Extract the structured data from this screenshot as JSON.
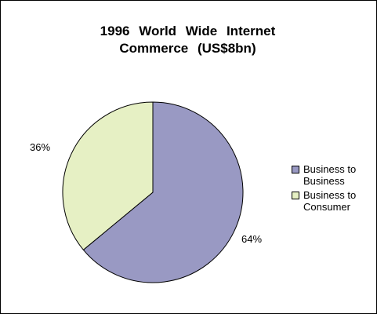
{
  "chart_data": {
    "type": "pie",
    "title_lines": [
      "1996 World Wide Internet",
      "Commerce (US$8bn)"
    ],
    "slices": [
      {
        "name": "Business to Business",
        "name_lines": [
          "Business to",
          "Business"
        ],
        "value": 64,
        "label": "64%",
        "color": "#9999c3"
      },
      {
        "name": "Business to Consumer",
        "name_lines": [
          "Business to",
          "Consumer"
        ],
        "value": 36,
        "label": "36%",
        "color": "#e6f0c4"
      }
    ],
    "legend_position": "right"
  }
}
